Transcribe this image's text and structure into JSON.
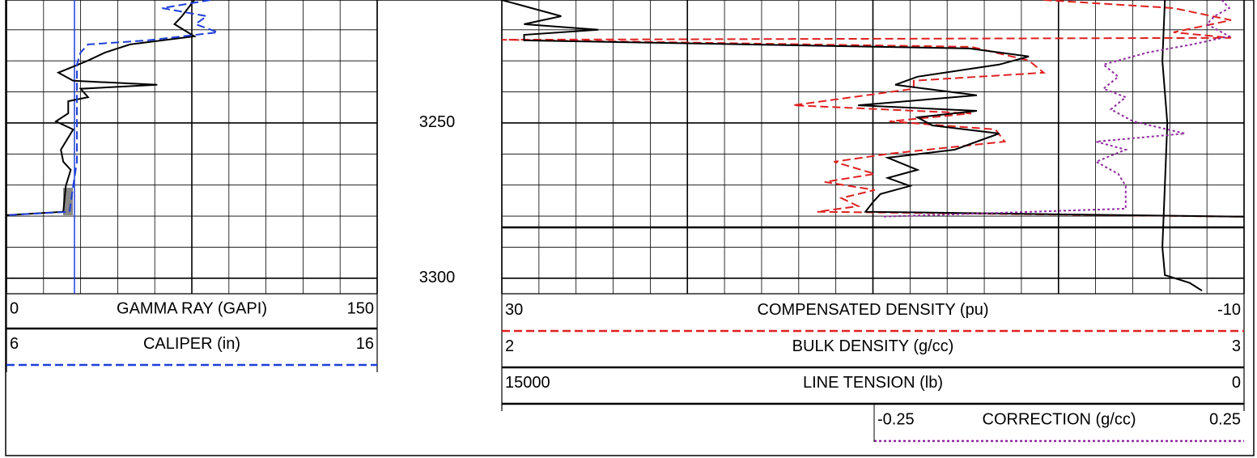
{
  "chart_data": {
    "type": "well-log",
    "ylim": [
      3210.4,
      3305
    ],
    "yticks": [
      3250,
      3300
    ],
    "tracks": [
      {
        "series": [
          {
            "name": "GAMMA RAY (GAPI)",
            "color": "#000000",
            "style": "solid",
            "xlim": [
              0,
              150
            ],
            "depth": [
              3210.4,
              3215.6,
              3218.2,
              3222.1,
              3224.7,
              3227.3,
              3229.9,
              3233.8,
              3236.4,
              3237.7,
              3239.0,
              3241.7,
              3243.0,
              3246.9,
              3249.5,
              3252.1,
              3256.0,
              3258.6,
              3262.5,
              3265.1,
              3267.7,
              3270.3,
              3278.6,
              3279.7
            ],
            "values": [
              76,
              71,
              68,
              76,
              50,
              40,
              33,
              21,
              27,
              61,
              30,
              33,
              25,
              25,
              20,
              27,
              24,
              22,
              23,
              26,
              25,
              24,
              23,
              0
            ]
          },
          {
            "name": "CALIPER (in)",
            "color": "#1f3fd8",
            "style": "dashed",
            "xlim": [
              6,
              16
            ],
            "depth": [
              3210.4,
              3213.0,
              3215.6,
              3218.2,
              3220.8,
              3223.4,
              3224.7,
              3227.3,
              3231.2,
              3249.5,
              3262.5,
              3270.3,
              3278.6,
              3279.7
            ],
            "values": [
              11.5,
              10.2,
              11.4,
              11.1,
              11.7,
              9.8,
              8.2,
              8.0,
              7.9,
              7.9,
              7.9,
              7.8,
              7.7,
              6
            ]
          }
        ]
      },
      {
        "series": [
          {
            "name": "COMPENSATED DENSITY (pu)",
            "color": "#e02020",
            "style": "dashed",
            "xlim": [
              30,
              -10
            ],
            "depth": [
              3210.4,
              3213.0,
              3216.9,
              3220.8,
              3222.6,
              3223.2,
              3225.5,
              3229.9,
              3233.8,
              3236.4,
              3239.0,
              3244.3,
              3246.9,
              3249.5,
              3252.1,
              3256.0,
              3259.9,
              3262.5,
              3266.4,
              3269.0,
              3271.6,
              3274.2,
              3276.8,
              3278.6,
              3280.2
            ],
            "values": [
              0.8,
              -6.2,
              -9.3,
              -6.2,
              -9.3,
              30,
              4.7,
              1.6,
              0.8,
              7.8,
              7.8,
              14.3,
              4.7,
              9.1,
              3.4,
              2.9,
              9.1,
              12.1,
              9.9,
              12.6,
              9.9,
              11.7,
              10.8,
              13.0,
              -10
            ]
          },
          {
            "name": "BULK DENSITY (g/cc)",
            "color": "#000000",
            "style": "solid",
            "xlim": [
              2,
              3
            ],
            "depth": [
              3210.4,
              3213.0,
              3215.6,
              3218.2,
              3220.0,
              3221.6,
              3223.4,
              3226.0,
              3228.6,
              3231.2,
              3235.1,
              3237.7,
              3241.1,
              3244.3,
              3246.1,
              3248.2,
              3250.8,
              3253.4,
              3256.0,
              3258.6,
              3261.2,
              3265.1,
              3267.7,
              3270.3,
              3272.9,
              3275.5,
              3278.6,
              3280.2
            ],
            "values": [
              2.0,
              2.04,
              2.08,
              2.03,
              2.13,
              2.03,
              2.03,
              2.63,
              2.71,
              2.67,
              2.56,
              2.53,
              2.64,
              2.48,
              2.64,
              2.56,
              2.58,
              2.67,
              2.64,
              2.61,
              2.52,
              2.56,
              2.52,
              2.55,
              2.51,
              2.5,
              2.49,
              3.0
            ]
          },
          {
            "name": "LINE TENSION (lb)",
            "color": "#000000",
            "style": "solid",
            "xlim": [
              15000,
              0
            ],
            "depth": [
              3210.4,
              3230,
              3250,
              3270,
              3290,
              3299,
              3301.5,
              3304
            ],
            "values": [
              1600,
              1650,
              1550,
              1600,
              1650,
              1600,
              1100,
              850
            ]
          },
          {
            "name": "CORRECTION (g/cc)",
            "color": "#8e2a9e",
            "style": "dotted",
            "xlim": [
              -0.25,
              0.25
            ],
            "depth": [
              3210.4,
              3213.0,
              3215.6,
              3218.2,
              3222.1,
              3224.7,
              3227.3,
              3231.2,
              3235.1,
              3239.0,
              3241.7,
              3245.6,
              3249.5,
              3253.4,
              3256.0,
              3258.6,
              3262.5,
              3266.4,
              3270.3,
              3274.2,
              3277.6,
              3280.2
            ],
            "values": [
              0.22,
              0.23,
              0.21,
              0.2,
              0.23,
              0.18,
              0.12,
              0.06,
              0.08,
              0.06,
              0.09,
              0.07,
              0.1,
              0.17,
              0.05,
              0.09,
              0.05,
              0.08,
              0.09,
              0.09,
              0.09,
              -0.24
            ]
          }
        ]
      }
    ]
  }
}
